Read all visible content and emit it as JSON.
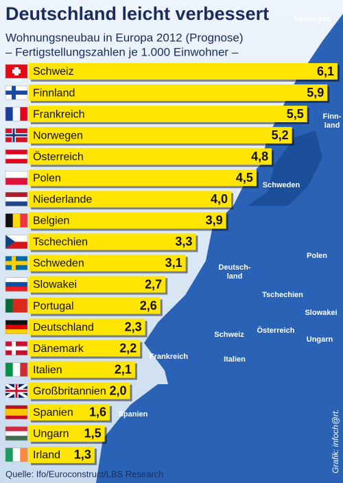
{
  "chart_data": {
    "type": "bar",
    "orientation": "horizontal",
    "title": "Deutschland leicht verbessert",
    "subtitle": "Wohnungsneubau in Europa 2012 (Prognose)",
    "subtitle2": "– Fertigstellungszahlen je 1.000 Einwohner –",
    "categories": [
      "Schweiz",
      "Finnland",
      "Frankreich",
      "Norwegen",
      "Österreich",
      "Polen",
      "Niederlande",
      "Belgien",
      "Tschechien",
      "Schweden",
      "Slowakei",
      "Portugal",
      "Deutschland",
      "Dänemark",
      "Italien",
      "Großbritannien",
      "Spanien",
      "Ungarn",
      "Irland"
    ],
    "values": [
      6.1,
      5.9,
      5.5,
      5.2,
      4.8,
      4.5,
      4.0,
      3.9,
      3.3,
      3.1,
      2.7,
      2.6,
      2.3,
      2.2,
      2.1,
      2.0,
      1.6,
      1.5,
      1.3
    ],
    "value_labels": [
      "6,1",
      "5,9",
      "5,5",
      "5,2",
      "4,8",
      "4,5",
      "4,0",
      "3,9",
      "3,3",
      "3,1",
      "2,7",
      "2,6",
      "2,3",
      "2,2",
      "2,1",
      "2,0",
      "1,6",
      "1,5",
      "1,3"
    ],
    "color": "#ffe500",
    "map_labels": [
      "Norwegen",
      "Finn-\nland",
      "Schweden",
      "Polen",
      "Deutsch-\nland",
      "Tschechien",
      "Slowakei",
      "Österreich",
      "Schweiz",
      "Ungarn",
      "Italien",
      "Frankreich",
      "Spanien"
    ],
    "source": "Quelle: Ifo/Euroconstruct/LBS Research",
    "credit": "Grafik: infoch@rt."
  }
}
